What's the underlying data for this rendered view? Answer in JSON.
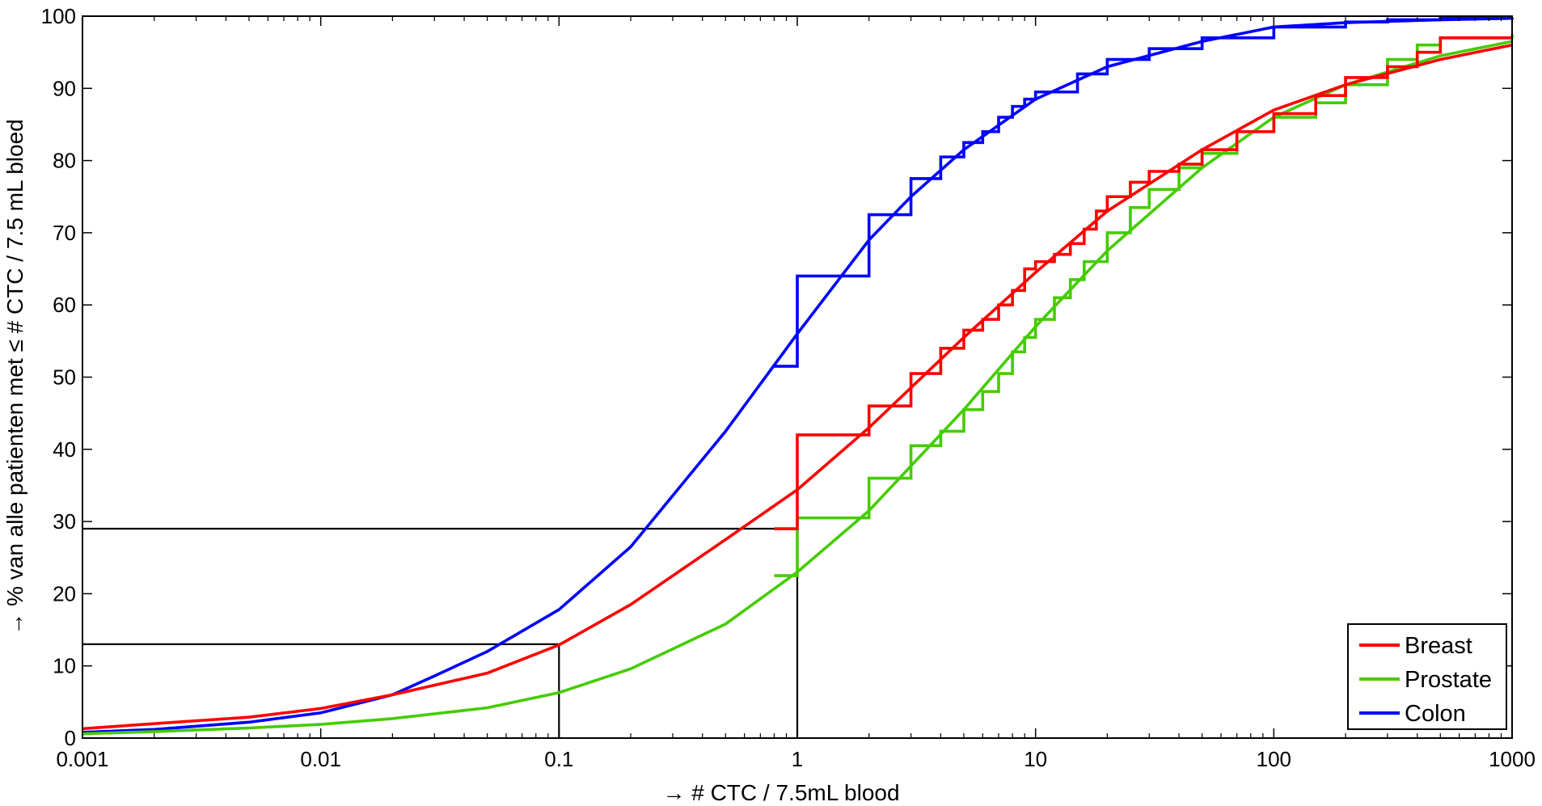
{
  "chart_data": {
    "type": "line",
    "title": "",
    "xlabel": "→ # CTC / 7.5mL blood",
    "ylabel": "→ % van alle patienten met ≤ # CTC / 7.5 mL bloed",
    "xscale": "log",
    "xlim": [
      0.001,
      1000
    ],
    "ylim": [
      0,
      100
    ],
    "x_ticks": [
      0.001,
      0.01,
      0.1,
      1,
      10,
      100,
      1000
    ],
    "x_tick_labels": [
      "0.001",
      "0.01",
      "0.1",
      "1",
      "10",
      "100",
      "1000"
    ],
    "y_ticks": [
      0,
      10,
      20,
      30,
      40,
      50,
      60,
      70,
      80,
      90,
      100
    ],
    "y_tick_labels": [
      "0",
      "10",
      "20",
      "30",
      "40",
      "50",
      "60",
      "70",
      "80",
      "90",
      "100"
    ],
    "grid": false,
    "legend_position": "bottom-right",
    "series": [
      {
        "name": "Breast",
        "color": "#ff0000",
        "fit_curve": {
          "x": [
            0.001,
            0.002,
            0.005,
            0.01,
            0.02,
            0.05,
            0.1,
            0.2,
            0.5,
            1,
            2,
            5,
            10,
            20,
            50,
            100,
            200,
            500,
            1000
          ],
          "y": [
            1.3,
            2.0,
            2.9,
            4.1,
            6.0,
            9.0,
            12.9,
            18.5,
            27.5,
            34.4,
            43.0,
            55.5,
            64.5,
            73.0,
            81.5,
            87.0,
            90.5,
            94.0,
            96.0
          ]
        },
        "empirical_steps": {
          "x": [
            0.8,
            1,
            1,
            2,
            2,
            3,
            3,
            4,
            4,
            5,
            6,
            7,
            8,
            9,
            9,
            10,
            12,
            14,
            16,
            18,
            20,
            25,
            30,
            40,
            50,
            70,
            100,
            150,
            200,
            300,
            400,
            500,
            1000
          ],
          "y": [
            29,
            29,
            42,
            42,
            46,
            46,
            50.5,
            50.5,
            54,
            56.5,
            58,
            60,
            62,
            62,
            65,
            66,
            67,
            68.5,
            70.5,
            73,
            75,
            77,
            78.5,
            79.5,
            81.5,
            84,
            86.5,
            89,
            91.5,
            93,
            95,
            97,
            97
          ]
        }
      },
      {
        "name": "Prostate",
        "color": "#44cc00",
        "fit_curve": {
          "x": [
            0.001,
            0.002,
            0.005,
            0.01,
            0.02,
            0.05,
            0.1,
            0.2,
            0.5,
            1,
            2,
            5,
            10,
            20,
            50,
            100,
            200,
            500,
            1000
          ],
          "y": [
            0.6,
            0.9,
            1.4,
            1.9,
            2.7,
            4.2,
            6.3,
            9.6,
            15.8,
            23.0,
            31.5,
            45.5,
            57.0,
            67.5,
            79.0,
            86.0,
            90.5,
            94.5,
            96.5
          ]
        },
        "empirical_steps": {
          "x": [
            0.8,
            1,
            1,
            2,
            2,
            3,
            3,
            4,
            4,
            5,
            5,
            6,
            7,
            8,
            9,
            10,
            12,
            14,
            16,
            20,
            25,
            30,
            40,
            50,
            70,
            100,
            150,
            200,
            300,
            400,
            500,
            1000
          ],
          "y": [
            22.5,
            22.5,
            30.5,
            30.5,
            36,
            36,
            40.5,
            40.5,
            42.5,
            42.5,
            45.5,
            48,
            50.5,
            53.5,
            55.5,
            58,
            61,
            63.5,
            66,
            70,
            73.5,
            76,
            79,
            81,
            84,
            86,
            88,
            90.5,
            94,
            96,
            97,
            97.5
          ]
        }
      },
      {
        "name": "Colon",
        "color": "#0000ff",
        "fit_curve": {
          "x": [
            0.001,
            0.002,
            0.005,
            0.01,
            0.02,
            0.03,
            0.05,
            0.1,
            0.2,
            0.5,
            1,
            2,
            3,
            5,
            10,
            20,
            50,
            100,
            200,
            500,
            1000
          ],
          "y": [
            0.8,
            1.2,
            2.2,
            3.5,
            6.0,
            8.6,
            12.0,
            17.8,
            26.5,
            42.5,
            56.0,
            69.0,
            75.0,
            81.5,
            88.5,
            93.0,
            96.5,
            98.5,
            99.1,
            99.5,
            99.7
          ]
        },
        "empirical_steps": {
          "x": [
            0.8,
            1,
            1,
            2,
            2,
            3,
            3,
            4,
            4,
            5,
            5,
            6,
            7,
            8,
            9,
            10,
            15,
            20,
            30,
            50,
            100,
            200,
            300,
            500,
            1000
          ],
          "y": [
            51.5,
            51.5,
            64,
            64,
            72.5,
            72.5,
            77.5,
            77.5,
            80.5,
            80.5,
            82.5,
            84,
            86,
            87.5,
            88.5,
            89.5,
            92,
            94,
            95.5,
            97,
            98.5,
            99.2,
            99.5,
            99.7,
            99.8
          ]
        }
      }
    ],
    "annotations": [
      {
        "type": "reference-lines",
        "x": 0.1,
        "y": 13
      },
      {
        "type": "reference-lines",
        "x": 1,
        "y": 29
      }
    ]
  }
}
